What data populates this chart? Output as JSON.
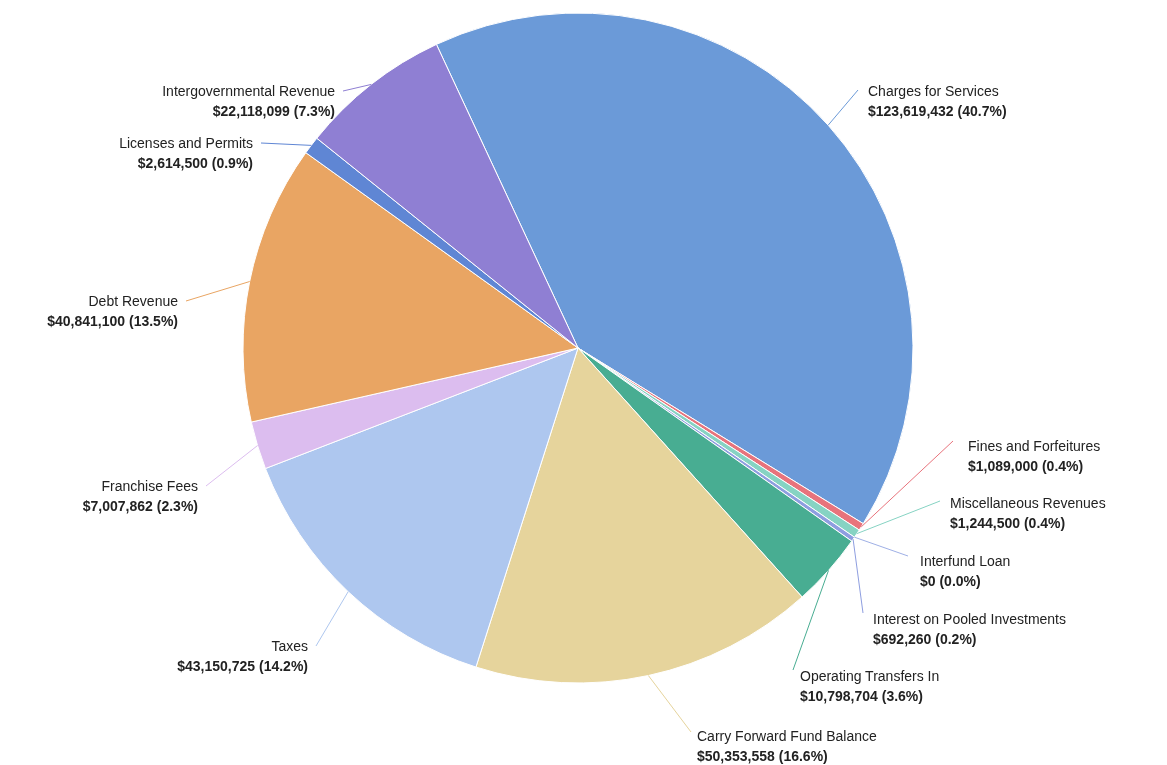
{
  "chart_data": {
    "type": "pie",
    "categories": [
      "Charges for Services",
      "Fines and Forfeitures",
      "Miscellaneous Revenues",
      "Interfund Loan",
      "Interest on Pooled Investments",
      "Operating Transfers In",
      "Carry Forward Fund Balance",
      "Taxes",
      "Franchise Fees",
      "Debt Revenue",
      "Licenses and Permits",
      "Intergovernmental Revenue"
    ],
    "values": [
      123619432,
      1089000,
      1244500,
      0,
      692260,
      10798704,
      50353558,
      43150725,
      7007862,
      40841100,
      2614500,
      22118099
    ],
    "value_labels": [
      "$123,619,432 (40.7%)",
      "$1,089,000 (0.4%)",
      "$1,244,500 (0.4%)",
      "$0 (0.0%)",
      "$692,260 (0.2%)",
      "$10,798,704 (3.6%)",
      "$50,353,558 (16.6%)",
      "$43,150,725 (14.2%)",
      "$7,007,862 (2.3%)",
      "$40,841,100 (13.5%)",
      "$2,614,500 (0.9%)",
      "$22,118,099 (7.3%)"
    ],
    "colors": [
      "#6b9ad8",
      "#e8737c",
      "#86d3c3",
      "#9fb0e6",
      "#8e9ee0",
      "#48ad92",
      "#e6d49c",
      "#aec7ef",
      "#dcbdef",
      "#e9a563",
      "#5f86d4",
      "#8f7fd3"
    ]
  }
}
